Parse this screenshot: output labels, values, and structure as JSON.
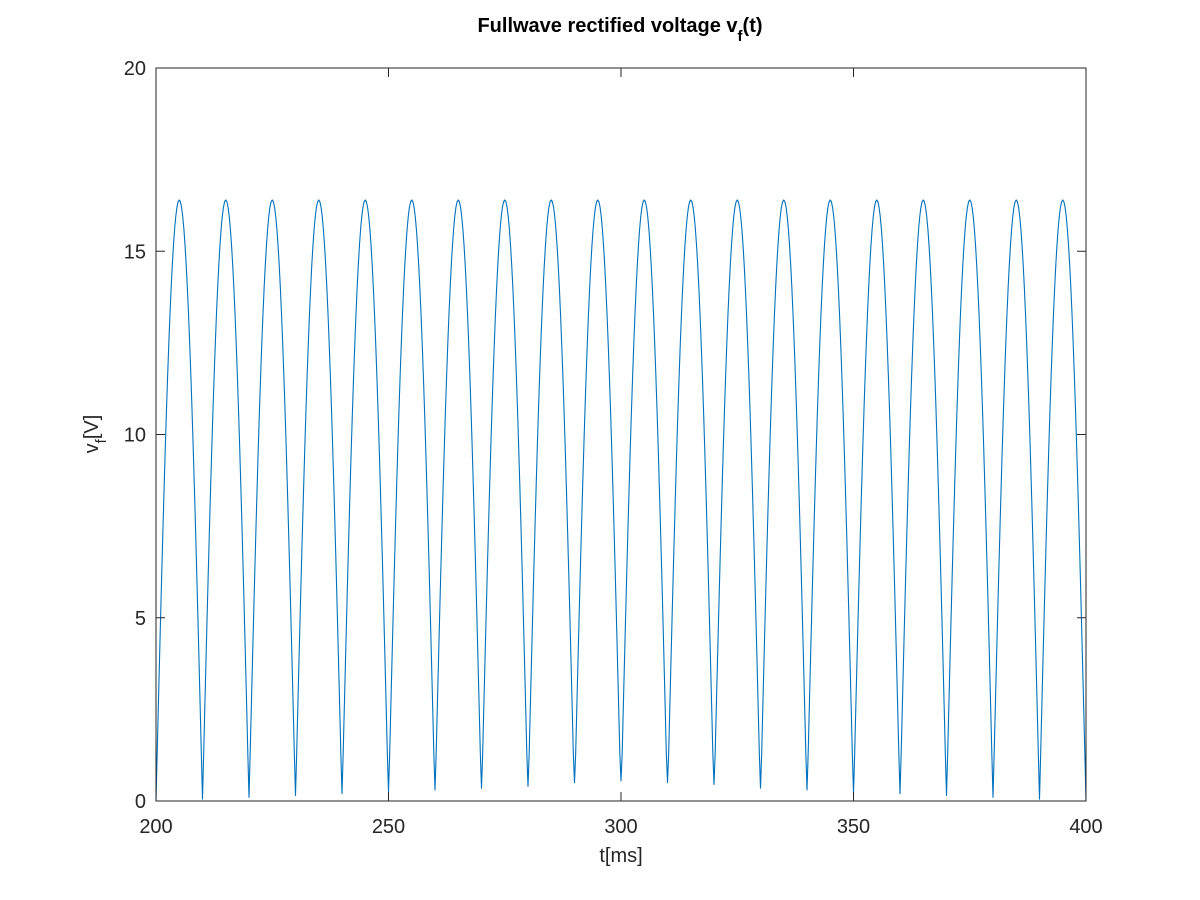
{
  "chart_data": {
    "type": "line",
    "title": {
      "main": "Fullwave rectified voltage v",
      "sub": "f",
      "tail": "(t)"
    },
    "xlabel": "t[ms]",
    "ylabel": {
      "main": "v",
      "sub": "f",
      "tail": "[V]"
    },
    "xlim": [
      200,
      400
    ],
    "ylim": [
      0,
      20
    ],
    "xticks": [
      200,
      250,
      300,
      350,
      400
    ],
    "xtick_labels": [
      "200",
      "250",
      "300",
      "350",
      "400"
    ],
    "yticks": [
      0,
      5,
      10,
      15,
      20
    ],
    "ytick_labels": [
      "0",
      "5",
      "10",
      "15",
      "20"
    ],
    "grid": false,
    "box": true,
    "colors": {
      "series": "#0072bd",
      "axes": "#262626"
    },
    "series": [
      {
        "description": "Full-wave rectified sinusoid of amplitude about 16.4 V with period 10 ms; local minima near 0 V at multiples of 10 ms",
        "peak": 16.4,
        "period_ms": 10,
        "x": [
          200,
          205,
          210,
          215,
          220,
          225,
          230,
          235,
          240,
          245,
          250,
          255,
          260,
          265,
          270,
          275,
          280,
          285,
          290,
          295,
          300,
          305,
          310,
          315,
          320,
          325,
          330,
          335,
          340,
          345,
          350,
          355,
          360,
          365,
          370,
          375,
          380,
          385,
          390,
          395,
          400
        ],
        "y": [
          0.0,
          16.4,
          0.05,
          16.4,
          0.1,
          16.4,
          0.15,
          16.4,
          0.2,
          16.4,
          0.25,
          16.4,
          0.3,
          16.4,
          0.35,
          16.4,
          0.4,
          16.4,
          0.5,
          16.4,
          0.55,
          16.4,
          0.5,
          16.4,
          0.45,
          16.4,
          0.35,
          16.4,
          0.3,
          16.4,
          0.2,
          16.4,
          0.2,
          16.4,
          0.15,
          16.4,
          0.1,
          16.4,
          0.05,
          16.4,
          0.0
        ]
      }
    ]
  }
}
